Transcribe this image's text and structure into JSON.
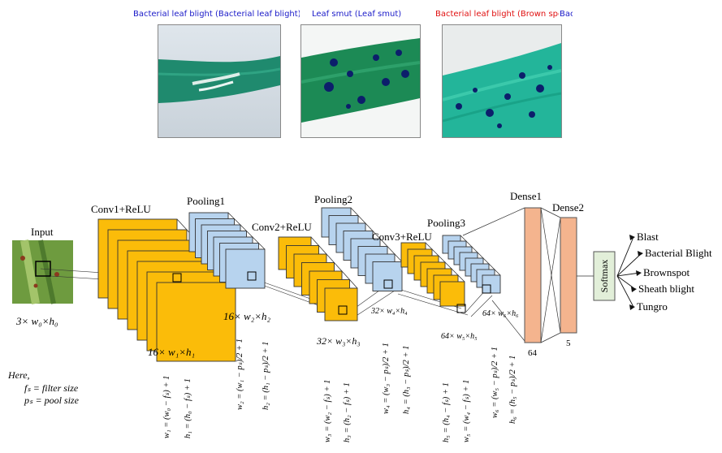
{
  "samples": [
    {
      "caption": "Bacterial leaf blight (Bacterial leaf blight)",
      "caption_color": "#1a1ac8"
    },
    {
      "caption": "Leaf smut (Leaf smut)",
      "caption_color": "#1a1ac8"
    },
    {
      "caption": "Bacterial leaf blight (Brown spot)",
      "caption_color": "#e01010"
    },
    {
      "caption": "Bac",
      "caption_color": "#1a1ac8"
    }
  ],
  "network": {
    "input_label": "Input",
    "input_dim": "3× w₀×h₀",
    "stages": {
      "conv1": {
        "title": "Conv1+ReLU",
        "dim": "16× w₁×h₁"
      },
      "pool1": {
        "title": "Pooling1",
        "dim": "16× w₂×h₂"
      },
      "conv2": {
        "title": "Conv2+ReLU",
        "dim": "32× w₃×h₃"
      },
      "pool2": {
        "title": "Pooling2",
        "dim": "32× w₄×h₄"
      },
      "conv3": {
        "title": "Conv3+ReLU",
        "dim": "64× w₅×h₅"
      },
      "pool3": {
        "title": "Pooling3",
        "dim": "64× w₆×h₆"
      }
    },
    "dense1": {
      "title": "Dense1",
      "size": "64"
    },
    "dense2": {
      "title": "Dense2",
      "size": "5"
    },
    "softmax": "Softmax",
    "outputs": [
      "Blast",
      "Bacterial Blight",
      "Brownspot",
      "Sheath blight",
      "Tungro"
    ],
    "legend": {
      "here": "Here,",
      "filter": "fₛ = filter size",
      "pool": "pₛ = pool size"
    },
    "formulas": [
      "w₁ = (w₀ − fₛ) + 1",
      "h₁ = (h₀ − fₛ) + 1",
      "w₂ = (w₁ − pₛ)/2 + 1",
      "h₂ = (h₁ − pₛ)/2 + 1",
      "w₃ = (w₂ − fₛ) + 1",
      "h₃ = (h₂ − fₛ) + 1",
      "w₄ = (w₃ − pₛ)/2 + 1",
      "h₄ = (h₃ − pₛ)/2 + 1",
      "h₅ = (h₄ − fₛ) + 1",
      "w₅ = (w₄ − fₛ) + 1",
      "w₆ = (w₅ − pₛ)/2 + 1",
      "h₆ = (h₅ − pₛ)/2 + 1"
    ]
  },
  "colors": {
    "conv": "#fbbc09",
    "pool": "#b7d3ee",
    "dense": "#f4b48e",
    "softmax": "#e2efd9"
  }
}
